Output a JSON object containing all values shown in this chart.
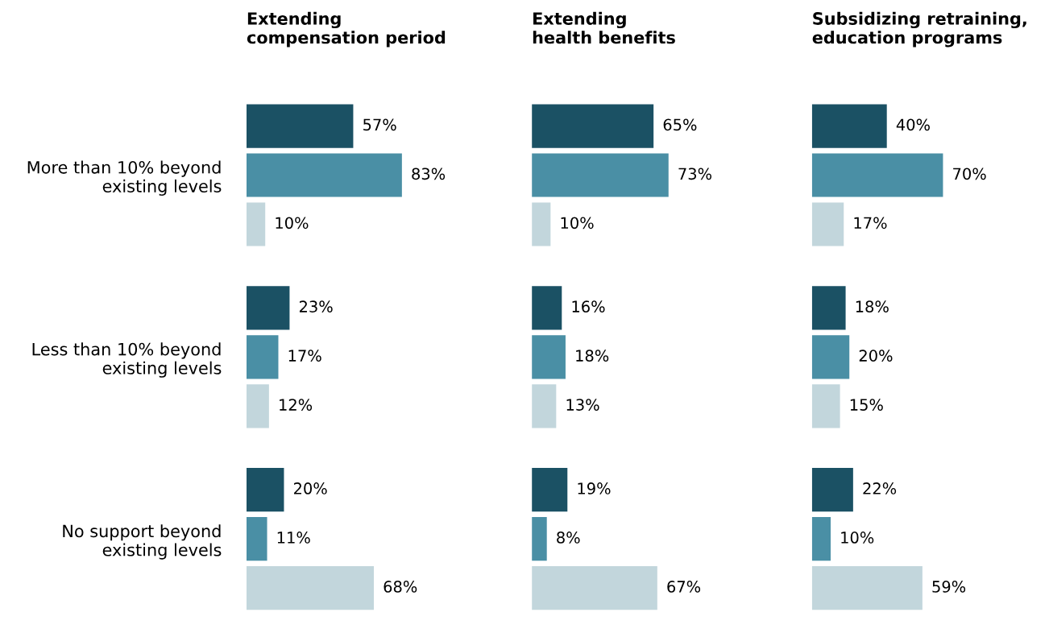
{
  "chart_data": [
    {
      "type": "bar",
      "orientation": "horizontal",
      "title": "Extending\ncompensation period",
      "categories": [
        "More than 10% beyond\nexisting levels",
        "Less than 10% beyond\nexisting levels",
        "No support beyond\nexisting levels"
      ],
      "series": [
        {
          "color": "#1b5164",
          "values": [
            57,
            23,
            20
          ],
          "value_labels": [
            "57%",
            "23%",
            "20%"
          ]
        },
        {
          "color": "#4a8fa5",
          "values": [
            83,
            17,
            11
          ],
          "value_labels": [
            "83%",
            "17%",
            "11%"
          ]
        },
        {
          "color": "#c2d6dc",
          "values": [
            10,
            12,
            68
          ],
          "value_labels": [
            "10%",
            "12%",
            "68%"
          ]
        }
      ],
      "tick_labels": "y"
    },
    {
      "type": "bar",
      "orientation": "horizontal",
      "title": "Extending\nhealth benefits",
      "categories": [
        null,
        null,
        null
      ],
      "series": [
        {
          "color": "#1b5164",
          "values": [
            65,
            16,
            19
          ],
          "value_labels": [
            "65%",
            "16%",
            "19%"
          ]
        },
        {
          "color": "#4a8fa5",
          "values": [
            73,
            18,
            8
          ],
          "value_labels": [
            "73%",
            "18%",
            "8%"
          ]
        },
        {
          "color": "#c2d6dc",
          "values": [
            10,
            13,
            67
          ],
          "value_labels": [
            "10%",
            "13%",
            "67%"
          ]
        }
      ],
      "tick_labels": false
    },
    {
      "type": "bar",
      "orientation": "horizontal",
      "title": "Subsidizing retraining,\neducation programs",
      "categories": [
        null,
        null,
        null
      ],
      "series": [
        {
          "color": "#1b5164",
          "values": [
            40,
            18,
            22
          ],
          "value_labels": [
            "40%",
            "18%",
            "22%"
          ]
        },
        {
          "color": "#4a8fa5",
          "values": [
            70,
            20,
            10
          ],
          "value_labels": [
            "70%",
            "20%",
            "10%"
          ]
        },
        {
          "color": "#c2d6dc",
          "values": [
            17,
            15,
            59
          ],
          "value_labels": [
            "17%",
            "15%",
            "59%"
          ]
        }
      ],
      "tick_labels": false
    }
  ]
}
